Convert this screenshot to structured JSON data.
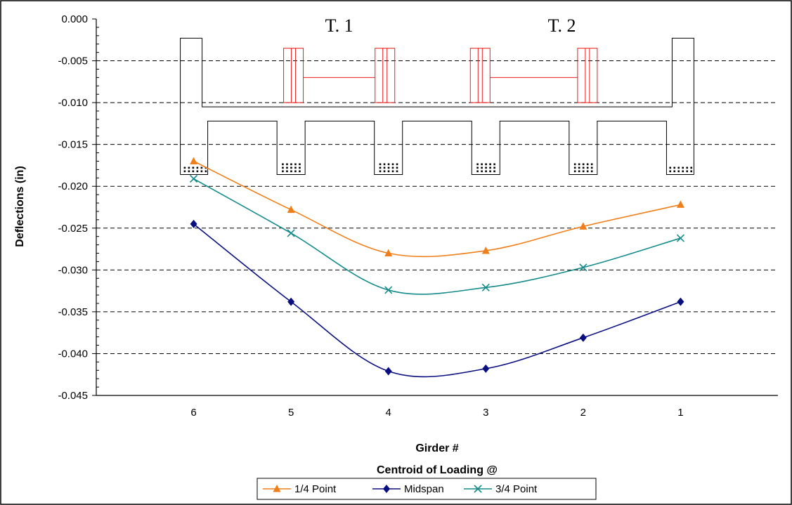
{
  "chart_data": {
    "type": "line",
    "title": "",
    "xlabel": "Girder #",
    "xlabel2": "Centroid of Loading @",
    "ylabel": "Deflections (in)",
    "categories": [
      "6",
      "5",
      "4",
      "3",
      "2",
      "1"
    ],
    "yticks": [
      "0.000",
      "-0.005",
      "-0.010",
      "-0.015",
      "-0.020",
      "-0.025",
      "-0.030",
      "-0.035",
      "-0.040",
      "-0.045"
    ],
    "ylim": [
      -0.045,
      0.0
    ],
    "grid": true,
    "legend_position": "bottom",
    "series": [
      {
        "name": "1/4 Point",
        "color": "#f07f1b",
        "marker": "triangle",
        "values": [
          -0.017,
          -0.0228,
          -0.028,
          -0.0277,
          -0.0248,
          -0.0222
        ]
      },
      {
        "name": "Midspan",
        "color": "#0a0f80",
        "marker": "diamond",
        "values": [
          -0.0245,
          -0.0338,
          -0.0421,
          -0.0418,
          -0.0381,
          -0.0338
        ]
      },
      {
        "name": "3/4 Point",
        "color": "#168b8b",
        "marker": "x",
        "values": [
          -0.0191,
          -0.0256,
          -0.0324,
          -0.0321,
          -0.0297,
          -0.0262
        ]
      }
    ],
    "annotations": [
      "T. 1",
      "T. 2"
    ]
  }
}
